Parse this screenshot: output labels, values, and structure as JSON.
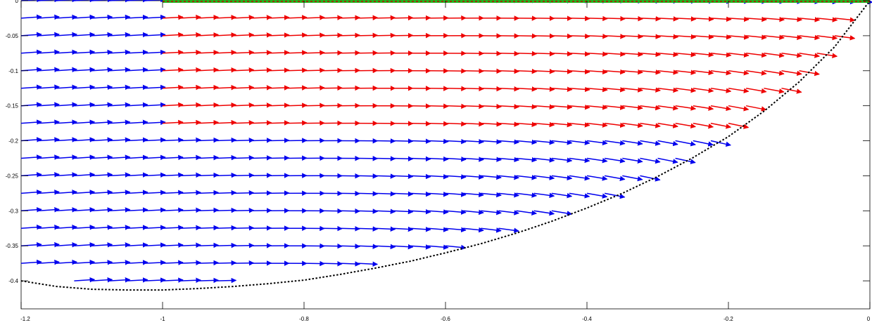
{
  "chart_data": {
    "type": "quiver",
    "title": "",
    "xlabel": "",
    "ylabel": "",
    "xlim": [
      -1.2,
      0
    ],
    "ylim": [
      -0.44,
      0
    ],
    "xticks": [
      -1.2,
      -1,
      -0.8,
      -0.6,
      -0.4,
      -0.2,
      0
    ],
    "xtick_labels": [
      "-1.2",
      "-1",
      "-0.8",
      "-0.6",
      "-0.4",
      "-0.2",
      "0"
    ],
    "yticks": [
      0,
      -0.05,
      -0.1,
      -0.15,
      -0.2,
      -0.25,
      -0.3,
      -0.35,
      -0.4
    ],
    "ytick_labels": [
      "0",
      "-0.05",
      "-0.1",
      "-0.15",
      "-0.2",
      "-0.25",
      "-0.3",
      "-0.35",
      "-0.4"
    ],
    "grid": false,
    "field": {
      "x_start": -1.2,
      "x_step": 0.025,
      "y_start": 0,
      "y_step": -0.025,
      "rows": 17,
      "cols": 48
    },
    "boundary_curve": {
      "style": "dotted",
      "color": "#000000",
      "x": [
        -1.2,
        -1.15,
        -1.1,
        -1.05,
        -1.0,
        -0.95,
        -0.9,
        -0.85,
        -0.8,
        -0.75,
        -0.7,
        -0.65,
        -0.6,
        -0.55,
        -0.5,
        -0.45,
        -0.4,
        -0.35,
        -0.3,
        -0.25,
        -0.2,
        -0.15,
        -0.1,
        -0.05,
        0.0
      ],
      "y": [
        -0.4,
        -0.408,
        -0.412,
        -0.413,
        -0.413,
        -0.411,
        -0.408,
        -0.404,
        -0.399,
        -0.391,
        -0.382,
        -0.372,
        -0.36,
        -0.347,
        -0.332,
        -0.315,
        -0.296,
        -0.275,
        -0.251,
        -0.224,
        -0.194,
        -0.158,
        -0.116,
        -0.066,
        0.0
      ]
    },
    "red_region": {
      "x_min": -1.0,
      "y_min": -0.175,
      "y_max": -0.025
    },
    "top_boundary": {
      "x_min": -1.0,
      "x_max": 0.0,
      "y": 0.0,
      "color": "#1fb51f"
    },
    "colors": {
      "blue": "#0000ee",
      "red": "#ee0000",
      "green": "#1fb51f",
      "boundary": "#000000"
    }
  }
}
